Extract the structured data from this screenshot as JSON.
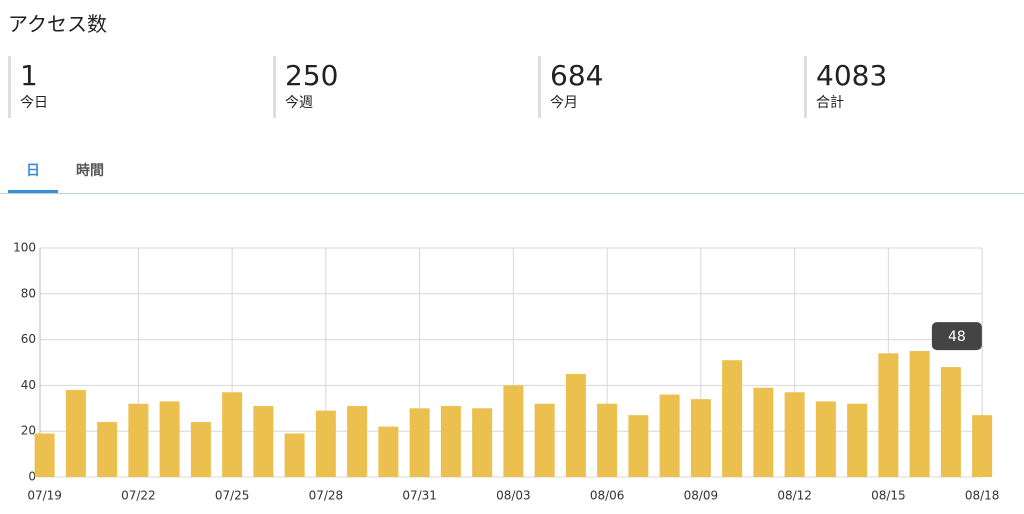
{
  "header": {
    "title": "アクセス数"
  },
  "stats": [
    {
      "value": "1",
      "label": "今日"
    },
    {
      "value": "250",
      "label": "今週"
    },
    {
      "value": "684",
      "label": "今月"
    },
    {
      "value": "4083",
      "label": "合計"
    }
  ],
  "tabs": [
    "日",
    "時間"
  ],
  "chart_data": {
    "type": "bar",
    "categories": [
      "07/19",
      null,
      null,
      "07/22",
      null,
      null,
      "07/25",
      null,
      null,
      "07/28",
      null,
      null,
      "07/31",
      null,
      null,
      "08/03",
      null,
      null,
      "08/06",
      null,
      null,
      "08/09",
      null,
      null,
      "08/12",
      null,
      null,
      "08/15",
      null,
      null,
      "08/18"
    ],
    "values": [
      19,
      38,
      24,
      32,
      33,
      24,
      37,
      31,
      19,
      29,
      31,
      22,
      30,
      31,
      30,
      40,
      32,
      45,
      32,
      27,
      36,
      34,
      51,
      39,
      37,
      33,
      32,
      54,
      55,
      48,
      27
    ],
    "color": "#ecc04f",
    "ylim": [
      0,
      100
    ],
    "yticks": [
      0,
      20,
      40,
      60,
      80,
      100
    ],
    "grid": true,
    "tooltip_index": 29
  }
}
